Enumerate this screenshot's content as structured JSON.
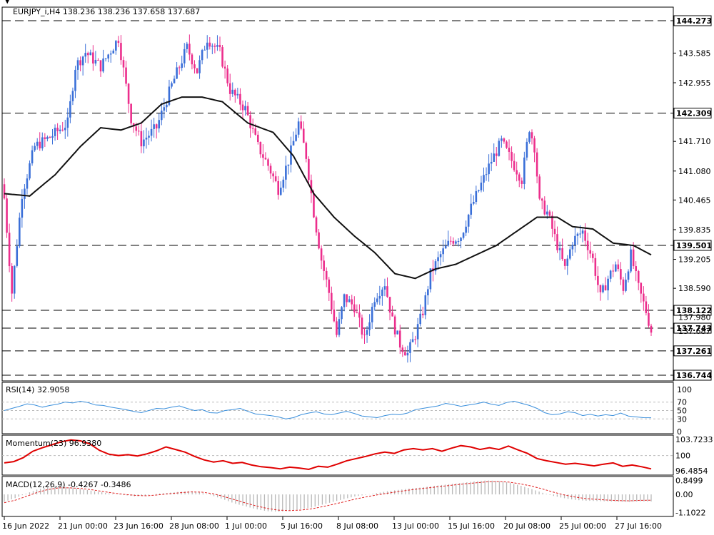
{
  "header": {
    "main": "EURJPY_i,H4  138.236 138.236 137.658 137.687",
    "rsi": "RSI(14) 32.9058",
    "momentum": "Momentum(23) 96.9380",
    "macd": "MACD(12,26,9) -0.4267 -0.3486"
  },
  "colors": {
    "bull": "#3a6fd8",
    "bear": "#ec2e8c",
    "ma": "#111111",
    "rsi": "#3a8fdc",
    "mom": "#e00000",
    "macd": "#b8b8b8",
    "signal": "#e02020",
    "grid": "#000000"
  },
  "chart_data": [
    {
      "type": "candlestick",
      "title": "EURJPY_i,H4",
      "ylim": [
        136.744,
        144.273
      ],
      "yticks": [
        "143.585",
        "142.955",
        "141.710",
        "141.080",
        "140.465",
        "139.835",
        "139.205",
        "138.590"
      ],
      "levels": [
        "144.273",
        "142.309",
        "139.501",
        "138.122",
        "137.743",
        "137.261",
        "136.744"
      ],
      "extra_price_labels": [
        "137.980",
        "137.687"
      ],
      "xticks": [
        "16 Jun 2022",
        "21 Jun 00:00",
        "23 Jun 16:00",
        "28 Jun 08:00",
        "1 Jul 00:00",
        "5 Jul 16:00",
        "8 Jul 08:00",
        "13 Jul 00:00",
        "15 Jul 16:00",
        "20 Jul 08:00",
        "25 Jul 00:00",
        "27 Jul 16:00"
      ],
      "close_path": [
        [
          0,
          140.5
        ],
        [
          3,
          138.5
        ],
        [
          7,
          140.6
        ],
        [
          12,
          141.6
        ],
        [
          18,
          141.8
        ],
        [
          25,
          142.1
        ],
        [
          28,
          143.3
        ],
        [
          32,
          143.6
        ],
        [
          38,
          143.3
        ],
        [
          45,
          143.9
        ],
        [
          50,
          142.2
        ],
        [
          54,
          141.7
        ],
        [
          60,
          142.0
        ],
        [
          66,
          142.9
        ],
        [
          72,
          143.7
        ],
        [
          76,
          143.2
        ],
        [
          80,
          143.9
        ],
        [
          85,
          143.6
        ],
        [
          89,
          142.8
        ],
        [
          95,
          142.4
        ],
        [
          100,
          141.6
        ],
        [
          104,
          141.2
        ],
        [
          108,
          140.7
        ],
        [
          112,
          141.3
        ],
        [
          116,
          142.1
        ],
        [
          119,
          141.4
        ],
        [
          122,
          140.2
        ],
        [
          125,
          139.2
        ],
        [
          128,
          138.5
        ],
        [
          131,
          137.6
        ],
        [
          134,
          138.4
        ],
        [
          138,
          138.2
        ],
        [
          142,
          137.5
        ],
        [
          146,
          138.4
        ],
        [
          150,
          138.7
        ],
        [
          153,
          137.9
        ],
        [
          156,
          137.4
        ],
        [
          159,
          137.2
        ],
        [
          162,
          137.6
        ],
        [
          165,
          138.1
        ],
        [
          168,
          138.9
        ],
        [
          172,
          139.3
        ],
        [
          176,
          139.6
        ],
        [
          180,
          139.7
        ],
        [
          184,
          140.3
        ],
        [
          188,
          140.8
        ],
        [
          192,
          141.3
        ],
        [
          196,
          141.7
        ],
        [
          200,
          141.3
        ],
        [
          204,
          140.9
        ],
        [
          207,
          142.0
        ],
        [
          209,
          141.6
        ],
        [
          211,
          140.4
        ],
        [
          214,
          140.2
        ],
        [
          218,
          139.5
        ],
        [
          221,
          139.0
        ],
        [
          224,
          139.6
        ],
        [
          228,
          139.8
        ],
        [
          232,
          139.2
        ],
        [
          235,
          138.4
        ],
        [
          238,
          138.8
        ],
        [
          241,
          139.1
        ],
        [
          244,
          138.6
        ],
        [
          247,
          139.3
        ],
        [
          250,
          138.6
        ],
        [
          253,
          138.1
        ],
        [
          255,
          137.687
        ]
      ],
      "ma_path": [
        [
          0,
          140.6
        ],
        [
          10,
          140.55
        ],
        [
          20,
          141.0
        ],
        [
          30,
          141.6
        ],
        [
          38,
          142.0
        ],
        [
          46,
          141.95
        ],
        [
          54,
          142.1
        ],
        [
          62,
          142.5
        ],
        [
          70,
          142.65
        ],
        [
          78,
          142.65
        ],
        [
          86,
          142.55
        ],
        [
          96,
          142.1
        ],
        [
          106,
          141.9
        ],
        [
          114,
          141.4
        ],
        [
          122,
          140.6
        ],
        [
          130,
          140.1
        ],
        [
          138,
          139.7
        ],
        [
          146,
          139.35
        ],
        [
          154,
          138.9
        ],
        [
          162,
          138.8
        ],
        [
          170,
          139.0
        ],
        [
          178,
          139.1
        ],
        [
          186,
          139.3
        ],
        [
          194,
          139.5
        ],
        [
          202,
          139.8
        ],
        [
          210,
          140.1
        ],
        [
          218,
          140.1
        ],
        [
          224,
          139.9
        ],
        [
          232,
          139.85
        ],
        [
          240,
          139.55
        ],
        [
          248,
          139.5
        ],
        [
          255,
          139.3
        ]
      ],
      "n_bars": 256
    },
    {
      "type": "line",
      "title": "RSI(14) 32.9058",
      "ylim": [
        0,
        100
      ],
      "yticks": [
        "100",
        "70",
        "50",
        "30",
        "0"
      ],
      "levels": [
        30,
        50,
        70
      ],
      "series": [
        {
          "values": [
            50,
            55,
            60,
            66,
            63,
            58,
            62,
            65,
            70,
            68,
            72,
            69,
            63,
            62,
            58,
            55,
            52,
            48,
            45,
            50,
            55,
            54,
            58,
            61,
            55,
            50,
            52,
            45,
            44,
            50,
            52,
            55,
            48,
            42,
            40,
            38,
            35,
            30,
            33,
            40,
            44,
            47,
            42,
            40,
            44,
            48,
            43,
            37,
            35,
            33,
            38,
            41,
            40,
            44,
            52,
            55,
            58,
            61,
            67,
            64,
            60,
            63,
            66,
            70,
            65,
            62,
            69,
            72,
            67,
            62,
            55,
            45,
            40,
            42,
            47,
            45,
            38,
            41,
            37,
            40,
            38,
            44,
            37,
            35,
            33,
            32.9
          ]
        }
      ]
    },
    {
      "type": "line",
      "title": "Momentum(23) 96.9380",
      "ylim": [
        95.8,
        104.4
      ],
      "yticks": [
        "103.7233",
        "100",
        "96.4854"
      ],
      "levels": [
        100
      ],
      "series": [
        {
          "values": [
            98.3,
            98.6,
            99.5,
            101.0,
            101.8,
            102.5,
            103.2,
            103.6,
            103.4,
            102.7,
            101.2,
            100.3,
            100.0,
            100.2,
            99.9,
            100.4,
            101.1,
            102.0,
            101.4,
            100.8,
            99.8,
            99.0,
            98.5,
            98.8,
            98.2,
            98.4,
            97.8,
            97.4,
            97.2,
            96.9,
            97.3,
            97.1,
            96.8,
            97.5,
            97.3,
            98.0,
            98.8,
            99.3,
            99.8,
            100.4,
            100.8,
            100.5,
            101.3,
            101.6,
            101.3,
            101.6,
            101.0,
            101.7,
            102.3,
            102.0,
            101.4,
            101.8,
            101.4,
            102.2,
            101.3,
            100.5,
            99.3,
            98.8,
            98.4,
            98.0,
            98.2,
            97.9,
            97.6,
            98.0,
            98.3,
            97.5,
            97.8,
            97.4,
            96.9
          ]
        }
      ]
    },
    {
      "type": "bar",
      "title": "MACD(12,26,9) -0.4267 -0.3486",
      "ylim": [
        -1.25,
        1.0
      ],
      "yticks": [
        "0.8499",
        "0.00",
        "-1.1022"
      ],
      "series": [
        {
          "values": [
            -0.45,
            -0.22,
            0.05,
            0.3,
            0.45,
            0.5,
            0.42,
            0.33,
            0.22,
            0.12,
            0.02,
            -0.05,
            -0.12,
            -0.05,
            0.05,
            0.1,
            0.16,
            0.2,
            0.1,
            -0.08,
            -0.3,
            -0.55,
            -0.72,
            -0.9,
            -1.02,
            -1.05,
            -1.0,
            -0.9,
            -0.8,
            -0.62,
            -0.45,
            -0.28,
            -0.12,
            -0.02,
            0.08,
            0.2,
            0.28,
            0.36,
            0.42,
            0.5,
            0.58,
            0.65,
            0.72,
            0.8,
            0.85,
            0.82,
            0.72,
            0.55,
            0.35,
            0.12,
            -0.08,
            -0.22,
            -0.33,
            -0.38,
            -0.4,
            -0.42,
            -0.44,
            -0.46,
            -0.42,
            -0.43
          ]
        },
        {
          "values": [
            -0.5,
            -0.35,
            -0.12,
            0.12,
            0.3,
            0.4,
            0.4,
            0.36,
            0.28,
            0.18,
            0.08,
            0.0,
            -0.06,
            -0.08,
            -0.03,
            0.04,
            0.1,
            0.15,
            0.14,
            0.05,
            -0.12,
            -0.32,
            -0.52,
            -0.7,
            -0.85,
            -0.95,
            -0.98,
            -0.95,
            -0.88,
            -0.75,
            -0.6,
            -0.45,
            -0.28,
            -0.15,
            -0.03,
            0.08,
            0.18,
            0.27,
            0.35,
            0.42,
            0.5,
            0.57,
            0.64,
            0.7,
            0.76,
            0.78,
            0.75,
            0.65,
            0.52,
            0.35,
            0.15,
            -0.02,
            -0.15,
            -0.25,
            -0.3,
            -0.34,
            -0.37,
            -0.39,
            -0.36,
            -0.35
          ]
        }
      ]
    }
  ]
}
